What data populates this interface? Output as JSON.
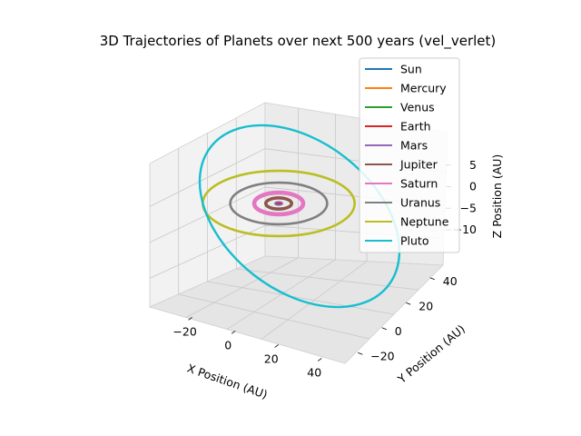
{
  "chart_data": {
    "type": "line",
    "projection": "3d",
    "title": "3D Trajectories of Planets over next 500 years (vel_verlet)",
    "xlabel": "X Position (AU)",
    "ylabel": "Y Position (AU)",
    "zlabel": "Z Position (AU)",
    "xticks": [
      -20,
      0,
      20,
      40
    ],
    "yticks": [
      -20,
      0,
      20,
      40
    ],
    "zticks": [
      5,
      0,
      -5,
      -10
    ],
    "xlim": [
      -35,
      50
    ],
    "ylim": [
      -30,
      50
    ],
    "zlim": [
      -14,
      10
    ],
    "grid": true,
    "legend_position": "top-right",
    "series": [
      {
        "name": "Sun",
        "color": "#1f77b4",
        "semi_major_axis_au": 0.0
      },
      {
        "name": "Mercury",
        "color": "#ff7f0e",
        "semi_major_axis_au": 0.39
      },
      {
        "name": "Venus",
        "color": "#2ca02c",
        "semi_major_axis_au": 0.72
      },
      {
        "name": "Earth",
        "color": "#d62728",
        "semi_major_axis_au": 1.0
      },
      {
        "name": "Mars",
        "color": "#9467bd",
        "semi_major_axis_au": 1.52
      },
      {
        "name": "Jupiter",
        "color": "#8c564b",
        "semi_major_axis_au": 5.2
      },
      {
        "name": "Saturn",
        "color": "#e377c2",
        "semi_major_axis_au": 9.5
      },
      {
        "name": "Uranus",
        "color": "#7f7f7f",
        "semi_major_axis_au": 19.2
      },
      {
        "name": "Neptune",
        "color": "#bcbd22",
        "semi_major_axis_au": 30.1
      },
      {
        "name": "Pluto",
        "color": "#17becf",
        "semi_major_axis_au": 39.5
      }
    ]
  }
}
